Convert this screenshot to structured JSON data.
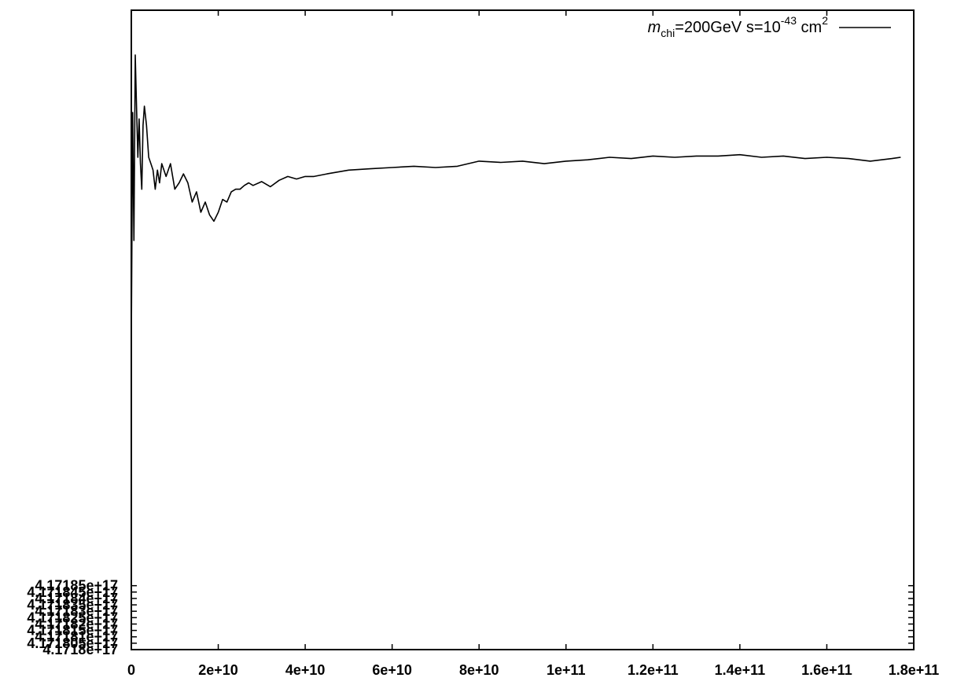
{
  "chart_data": {
    "type": "line",
    "title": "",
    "xlabel": "",
    "ylabel": "",
    "xlim": [
      0,
      180000000000
    ],
    "ylim": [
      4.1718e+17,
      4.1723e+17
    ],
    "grid": false,
    "legend_position": "top-right",
    "x_tick_values": [
      0,
      20000000000,
      40000000000,
      60000000000,
      80000000000,
      100000000000,
      120000000000,
      140000000000,
      160000000000,
      180000000000
    ],
    "x_tick_labels": [
      "0",
      "2e+10",
      "4e+10",
      "6e+10",
      "8e+10",
      "1e+11",
      "1.2e+11",
      "1.4e+11",
      "1.6e+11",
      "1.8e+11"
    ],
    "y_tick_values": [
      4.1718e+17,
      4.171805e+17,
      4.17181e+17,
      4.171815e+17,
      4.17182e+17,
      4.171825e+17,
      4.17183e+17,
      4.171835e+17,
      4.17184e+17,
      4.171845e+17,
      4.17185e+17
    ],
    "y_tick_labels": [
      "4.1718e+17",
      "4.171805e+17",
      "4.17181e+17",
      "4.171815e+17",
      "4.17182e+17",
      "4.171825e+17",
      "4.17183e+17",
      "4.171835e+17",
      "4.17184e+17",
      "4.171845e+17",
      "4.17185e+17"
    ],
    "legend": {
      "label_m": "m",
      "label_sub": "chi",
      "label_mid": "=200GeV s=10",
      "label_exp": "-43",
      "label_unit": " cm",
      "label_unit_exp": "2"
    },
    "series": [
      {
        "color": "#000000",
        "x": [
          0,
          300000000,
          600000000,
          900000000,
          1200000000,
          1500000000,
          1800000000,
          2100000000,
          2400000000,
          2700000000,
          3000000000,
          3500000000,
          4000000000,
          4500000000,
          5000000000,
          5500000000,
          6000000000,
          6500000000,
          7000000000,
          8000000000,
          9000000000,
          10000000000,
          11000000000,
          12000000000,
          13000000000,
          14000000000,
          15000000000,
          16000000000,
          17000000000,
          18000000000,
          19000000000,
          20000000000,
          21000000000,
          22000000000,
          23000000000,
          24000000000,
          25000000000,
          26000000000,
          27000000000,
          28000000000,
          30000000000,
          32000000000,
          34000000000,
          36000000000,
          38000000000,
          40000000000,
          42000000000,
          45000000000,
          50000000000,
          55000000000,
          60000000000,
          65000000000,
          70000000000,
          75000000000,
          80000000000,
          85000000000,
          90000000000,
          95000000000,
          100000000000,
          105000000000,
          110000000000,
          115000000000,
          120000000000,
          125000000000,
          130000000000,
          135000000000,
          140000000000,
          145000000000,
          150000000000,
          155000000000,
          160000000000,
          165000000000,
          170000000000,
          175000000000,
          177000000000
        ],
        "y": [
          4.17204e+17,
          4.17222e+17,
          4.17212e+17,
          4.172265e+17,
          4.172225e+17,
          4.172185e+17,
          4.172215e+17,
          4.17218e+17,
          4.17216e+17,
          4.17221e+17,
          4.172225e+17,
          4.17221e+17,
          4.172185e+17,
          4.17218e+17,
          4.172175e+17,
          4.17216e+17,
          4.172175e+17,
          4.172165e+17,
          4.17218e+17,
          4.17217e+17,
          4.17218e+17,
          4.17216e+17,
          4.172165e+17,
          4.172172e+17,
          4.172165e+17,
          4.17215e+17,
          4.172158e+17,
          4.172142e+17,
          4.17215e+17,
          4.17214e+17,
          4.172135e+17,
          4.172142e+17,
          4.172152e+17,
          4.17215e+17,
          4.172158e+17,
          4.17216e+17,
          4.17216e+17,
          4.172163e+17,
          4.172165e+17,
          4.172163e+17,
          4.172166e+17,
          4.172162e+17,
          4.172167e+17,
          4.17217e+17,
          4.172168e+17,
          4.17217e+17,
          4.17217e+17,
          4.172172e+17,
          4.172175e+17,
          4.172176e+17,
          4.172177e+17,
          4.172178e+17,
          4.172177e+17,
          4.172178e+17,
          4.172182e+17,
          4.172181e+17,
          4.172182e+17,
          4.17218e+17,
          4.172182e+17,
          4.172183e+17,
          4.172185e+17,
          4.172184e+17,
          4.172186e+17,
          4.172185e+17,
          4.172186e+17,
          4.172186e+17,
          4.172187e+17,
          4.172185e+17,
          4.172186e+17,
          4.172184e+17,
          4.172185e+17,
          4.172184e+17,
          4.172182e+17,
          4.172184e+17,
          4.172185e+17
        ]
      }
    ]
  }
}
